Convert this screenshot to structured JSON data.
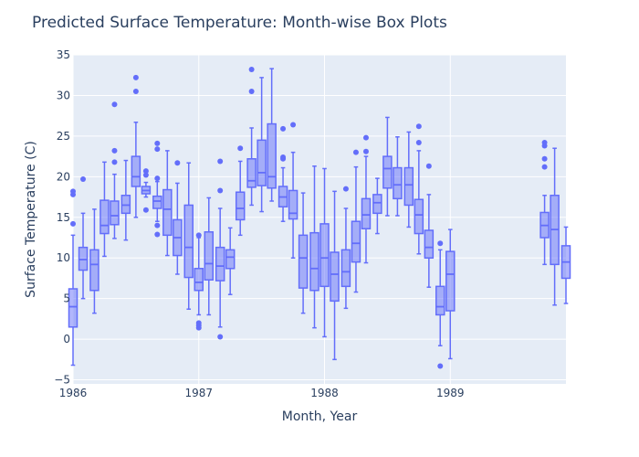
{
  "chart_data": {
    "type": "box",
    "title": "Predicted Surface Temperature: Month-wise Box Plots",
    "xlabel": "Month, Year",
    "ylabel": "Surface Temperature (C)",
    "ylim": [
      -5.5,
      35
    ],
    "yticks": [
      -5,
      0,
      5,
      10,
      15,
      20,
      25,
      30,
      35
    ],
    "ytick_labels": [
      "−5",
      "0",
      "5",
      "10",
      "15",
      "20",
      "25",
      "30",
      "35"
    ],
    "xlim": [
      1986.0,
      1989.92
    ],
    "xticks": [
      1986,
      1987,
      1988,
      1989
    ],
    "xtick_labels": [
      "1986",
      "1987",
      "1988",
      "1989"
    ],
    "grid": true,
    "colors": {
      "plot_bg": "#e5ecf6",
      "grid": "#ffffff",
      "box_line": "#636efa",
      "box_fill": "rgba(99,110,250,0.5)",
      "outlier": "#636efa",
      "text": "#2a3f5f"
    },
    "boxes": [
      {
        "x": 1986.0,
        "wlo": -3.2,
        "q1": 1.5,
        "med": 4.0,
        "q3": 6.2,
        "whi": 12.8,
        "outliers": [
          14.2,
          17.8,
          18.2
        ]
      },
      {
        "x": 1986.08,
        "wlo": 5.0,
        "q1": 8.5,
        "med": 9.8,
        "q3": 11.3,
        "whi": 15.5,
        "outliers": [
          19.7
        ]
      },
      {
        "x": 1986.17,
        "wlo": 3.2,
        "q1": 6.0,
        "med": 9.2,
        "q3": 11.0,
        "whi": 16.0,
        "outliers": []
      },
      {
        "x": 1986.25,
        "wlo": 10.2,
        "q1": 13.0,
        "med": 14.0,
        "q3": 17.1,
        "whi": 21.8,
        "outliers": []
      },
      {
        "x": 1986.33,
        "wlo": 12.4,
        "q1": 14.1,
        "med": 15.2,
        "q3": 17.0,
        "whi": 20.3,
        "outliers": [
          21.8,
          23.2,
          28.9
        ]
      },
      {
        "x": 1986.42,
        "wlo": 12.2,
        "q1": 15.5,
        "med": 16.5,
        "q3": 17.7,
        "whi": 22.0,
        "outliers": []
      },
      {
        "x": 1986.5,
        "wlo": 15.0,
        "q1": 18.8,
        "med": 20.0,
        "q3": 22.5,
        "whi": 26.7,
        "outliers": [
          30.5,
          32.2
        ]
      },
      {
        "x": 1986.58,
        "wlo": 17.5,
        "q1": 17.9,
        "med": 18.3,
        "q3": 18.8,
        "whi": 19.3,
        "outliers": [
          15.9,
          20.2,
          20.7
        ]
      },
      {
        "x": 1986.67,
        "wlo": 14.5,
        "q1": 16.1,
        "med": 17.0,
        "q3": 17.6,
        "whi": 19.4,
        "outliers": [
          12.9,
          14.0,
          19.8,
          23.4,
          24.1
        ]
      },
      {
        "x": 1986.75,
        "wlo": 10.3,
        "q1": 12.8,
        "med": 16.0,
        "q3": 18.4,
        "whi": 23.2,
        "outliers": []
      },
      {
        "x": 1986.83,
        "wlo": 8.0,
        "q1": 10.3,
        "med": 12.5,
        "q3": 14.7,
        "whi": 19.2,
        "outliers": [
          21.7
        ]
      },
      {
        "x": 1986.92,
        "wlo": 3.7,
        "q1": 7.6,
        "med": 11.3,
        "q3": 16.5,
        "whi": 21.7,
        "outliers": []
      },
      {
        "x": 1987.0,
        "wlo": 3.0,
        "q1": 6.0,
        "med": 7.0,
        "q3": 8.7,
        "whi": 12.5,
        "outliers": [
          1.4,
          1.7,
          2.0,
          12.8
        ]
      },
      {
        "x": 1987.08,
        "wlo": 3.0,
        "q1": 7.3,
        "med": 9.3,
        "q3": 13.2,
        "whi": 17.4,
        "outliers": []
      },
      {
        "x": 1987.17,
        "wlo": 1.5,
        "q1": 7.2,
        "med": 9.0,
        "q3": 11.3,
        "whi": 16.1,
        "outliers": [
          0.3,
          18.3,
          21.9
        ]
      },
      {
        "x": 1987.25,
        "wlo": 5.5,
        "q1": 8.7,
        "med": 10.1,
        "q3": 11.0,
        "whi": 13.7,
        "outliers": []
      },
      {
        "x": 1987.33,
        "wlo": 12.8,
        "q1": 14.7,
        "med": 16.1,
        "q3": 18.1,
        "whi": 21.9,
        "outliers": [
          23.5
        ]
      },
      {
        "x": 1987.42,
        "wlo": 16.5,
        "q1": 18.7,
        "med": 19.5,
        "q3": 22.2,
        "whi": 26.0,
        "outliers": [
          30.5,
          33.2
        ]
      },
      {
        "x": 1987.5,
        "wlo": 15.7,
        "q1": 18.9,
        "med": 20.5,
        "q3": 24.5,
        "whi": 32.2,
        "outliers": []
      },
      {
        "x": 1987.58,
        "wlo": 17.0,
        "q1": 18.6,
        "med": 20.0,
        "q3": 26.5,
        "whi": 33.3,
        "outliers": []
      },
      {
        "x": 1987.67,
        "wlo": 14.5,
        "q1": 16.3,
        "med": 17.5,
        "q3": 18.8,
        "whi": 21.1,
        "outliers": [
          22.2,
          22.4,
          25.9
        ]
      },
      {
        "x": 1987.75,
        "wlo": 10.0,
        "q1": 14.8,
        "med": 15.5,
        "q3": 18.3,
        "whi": 23.0,
        "outliers": [
          26.4
        ]
      },
      {
        "x": 1987.83,
        "wlo": 3.2,
        "q1": 6.3,
        "med": 10.0,
        "q3": 12.8,
        "whi": 18.0,
        "outliers": []
      },
      {
        "x": 1987.92,
        "wlo": 1.4,
        "q1": 6.0,
        "med": 8.7,
        "q3": 13.1,
        "whi": 21.3,
        "outliers": []
      },
      {
        "x": 1988.0,
        "wlo": 0.3,
        "q1": 6.5,
        "med": 10.0,
        "q3": 14.2,
        "whi": 21.0,
        "outliers": []
      },
      {
        "x": 1988.08,
        "wlo": -2.5,
        "q1": 4.7,
        "med": 8.0,
        "q3": 10.7,
        "whi": 18.2,
        "outliers": []
      },
      {
        "x": 1988.17,
        "wlo": 3.8,
        "q1": 6.5,
        "med": 8.3,
        "q3": 11.0,
        "whi": 16.1,
        "outliers": [
          18.5
        ]
      },
      {
        "x": 1988.25,
        "wlo": 5.8,
        "q1": 9.5,
        "med": 11.8,
        "q3": 14.5,
        "whi": 21.2,
        "outliers": [
          23.0
        ]
      },
      {
        "x": 1988.33,
        "wlo": 9.4,
        "q1": 13.6,
        "med": 15.3,
        "q3": 17.3,
        "whi": 22.5,
        "outliers": [
          23.1,
          24.8
        ]
      },
      {
        "x": 1988.42,
        "wlo": 13.0,
        "q1": 15.5,
        "med": 16.8,
        "q3": 17.8,
        "whi": 19.8,
        "outliers": []
      },
      {
        "x": 1988.5,
        "wlo": 15.2,
        "q1": 18.6,
        "med": 21.0,
        "q3": 22.5,
        "whi": 27.3,
        "outliers": []
      },
      {
        "x": 1988.58,
        "wlo": 15.2,
        "q1": 17.3,
        "med": 19.0,
        "q3": 21.1,
        "whi": 24.9,
        "outliers": []
      },
      {
        "x": 1988.67,
        "wlo": 13.8,
        "q1": 16.5,
        "med": 19.0,
        "q3": 21.1,
        "whi": 25.5,
        "outliers": []
      },
      {
        "x": 1988.75,
        "wlo": 10.5,
        "q1": 13.0,
        "med": 15.3,
        "q3": 17.2,
        "whi": 23.2,
        "outliers": [
          24.2,
          26.2
        ]
      },
      {
        "x": 1988.83,
        "wlo": 6.4,
        "q1": 10.0,
        "med": 11.3,
        "q3": 13.4,
        "whi": 17.8,
        "outliers": [
          21.3
        ]
      },
      {
        "x": 1988.92,
        "wlo": -0.8,
        "q1": 3.0,
        "med": 4.0,
        "q3": 6.5,
        "whi": 11.0,
        "outliers": [
          -3.3,
          11.8
        ]
      },
      {
        "x": 1989.0,
        "wlo": -2.4,
        "q1": 3.5,
        "med": 8.0,
        "q3": 10.8,
        "whi": 13.5,
        "outliers": []
      },
      {
        "x": 1989.75,
        "wlo": 9.2,
        "q1": 12.5,
        "med": 14.0,
        "q3": 15.6,
        "whi": 17.7,
        "outliers": [
          21.2,
          22.2,
          23.8,
          24.2
        ]
      },
      {
        "x": 1989.83,
        "wlo": 4.2,
        "q1": 9.2,
        "med": 13.5,
        "q3": 17.7,
        "whi": 23.5,
        "outliers": []
      },
      {
        "x": 1989.92,
        "wlo": 4.4,
        "q1": 7.5,
        "med": 9.5,
        "q3": 11.5,
        "whi": 13.8,
        "outliers": []
      }
    ]
  }
}
